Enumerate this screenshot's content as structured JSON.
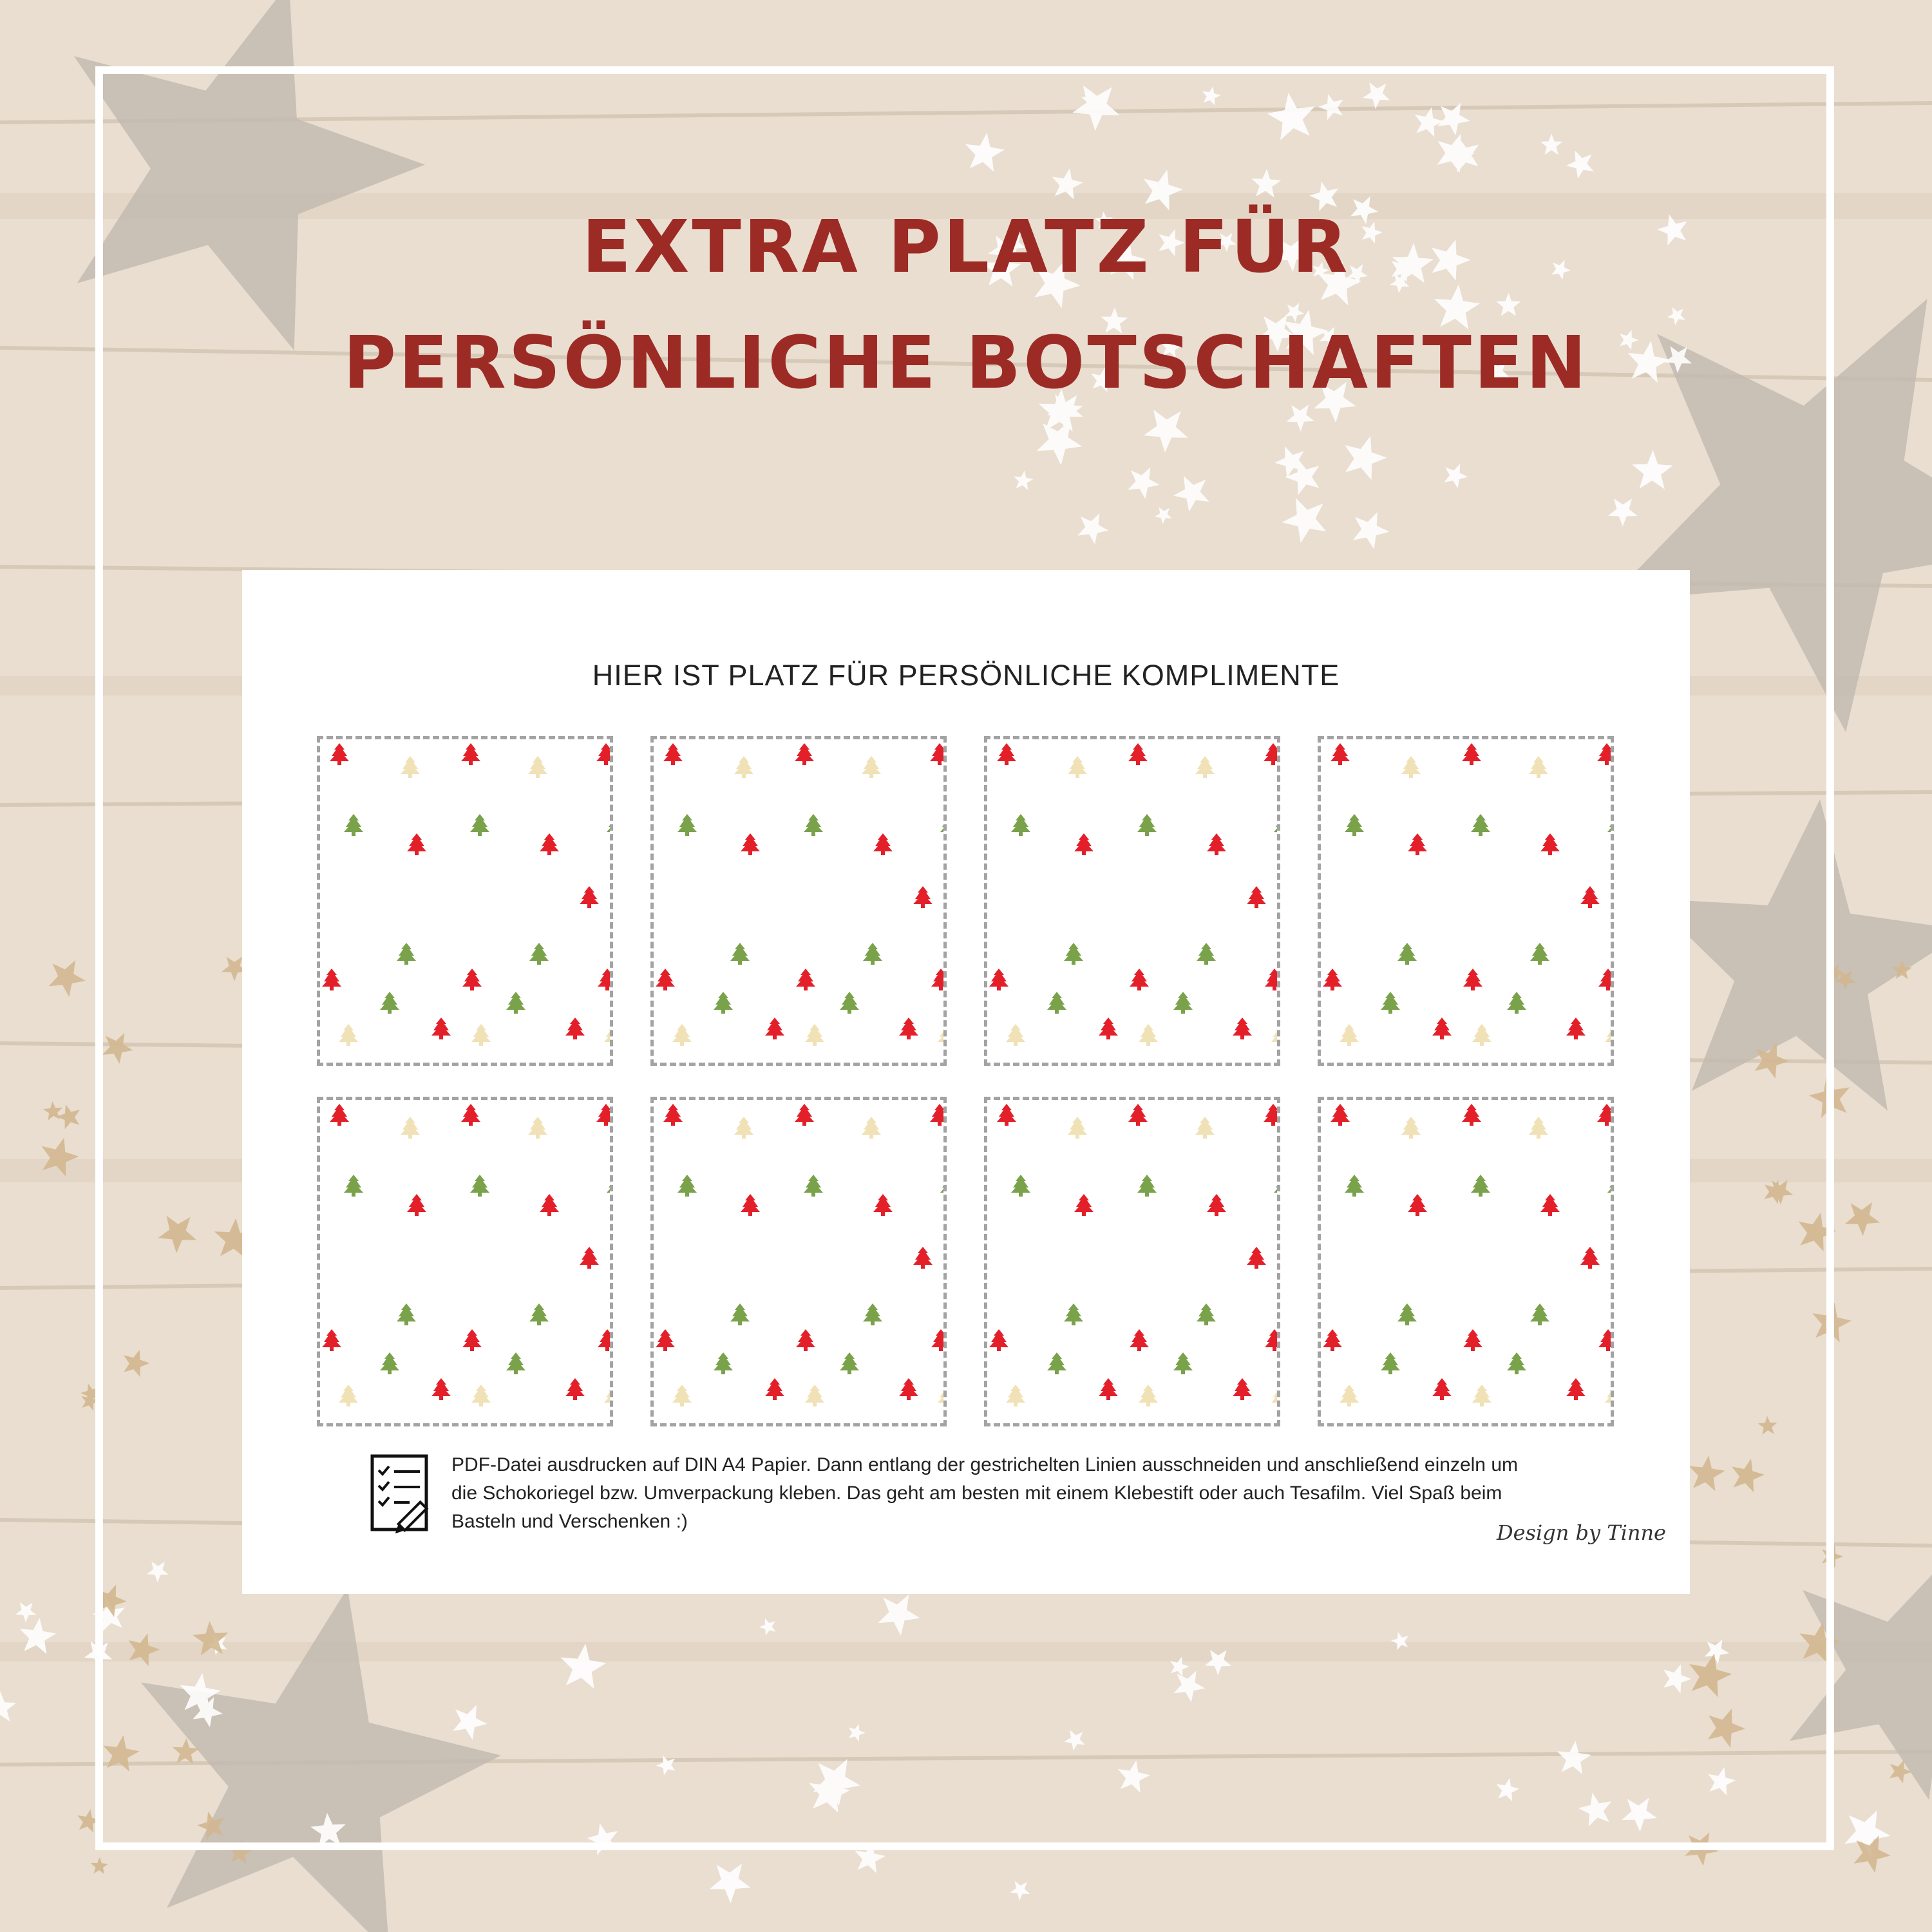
{
  "headline": {
    "line1": "EXTRA PLATZ FÜR",
    "line2": "PERSÖNLICHE BOTSCHAFTEN",
    "color": "#9c2b26"
  },
  "sheet": {
    "title": "HIER IST PLATZ FÜR PERSÖNLICHE KOMPLIMENTE",
    "card_count": 8,
    "card_pattern": "christmas-tree-pattern",
    "tree_colors": [
      "#e3202a",
      "#7aa24b",
      "#f0e2b6"
    ],
    "instructions": "PDF-Datei ausdrucken auf DIN A4 Papier. Dann entlang der gestrichelten Linien ausschneiden und anschließend einzeln um die Schokoriegel bzw. Umverpackung kleben. Das geht am besten mit einem Klebestift oder auch Tesafilm. Viel Spaß beim Basteln und Verschenken :)",
    "instructions_icon": "checklist-pencil-icon",
    "signature": "Design by Tinne"
  },
  "background": {
    "style": "light wooden planks with stars",
    "star_color": "#ffffff",
    "wood_color": "#e4d7c6"
  }
}
